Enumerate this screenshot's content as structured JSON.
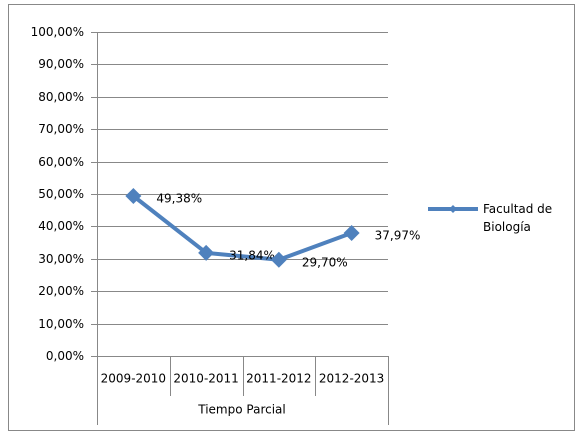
{
  "chart_data": {
    "type": "line",
    "x_label": "Tiempo Parcial",
    "categories": [
      "2009-2010",
      "2010-2011",
      "2011-2012",
      "2012-2013"
    ],
    "series": [
      {
        "name": "Facultad de Biología",
        "color": "#4f81bd",
        "values": [
          49.38,
          31.84,
          29.7,
          37.97
        ],
        "value_labels": [
          "49,38%",
          "31,84%",
          "29,70%",
          "37,97%"
        ]
      }
    ],
    "ylim": [
      0,
      100
    ],
    "yticks": [
      {
        "value": 0,
        "label": "0,00%"
      },
      {
        "value": 10,
        "label": "10,00%"
      },
      {
        "value": 20,
        "label": "20,00%"
      },
      {
        "value": 30,
        "label": "30,00%"
      },
      {
        "value": 40,
        "label": "40,00%"
      },
      {
        "value": 50,
        "label": "50,00%"
      },
      {
        "value": 60,
        "label": "60,00%"
      },
      {
        "value": 70,
        "label": "70,00%"
      },
      {
        "value": 80,
        "label": "80,00%"
      },
      {
        "value": 90,
        "label": "90,00%"
      },
      {
        "value": 100,
        "label": "100,00%"
      }
    ],
    "grid": true,
    "legend": "right"
  }
}
